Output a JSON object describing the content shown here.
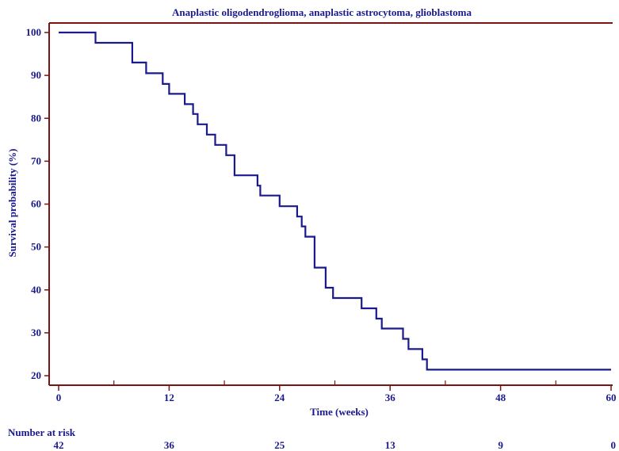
{
  "chart_data": {
    "type": "line",
    "title": "Anaplastic oligodendroglioma, anaplastic astrocytoma, glioblastoma",
    "xlabel": "Time (weeks)",
    "ylabel": "Survival probability (%)",
    "xlim": [
      0,
      60
    ],
    "ylim": [
      18,
      102
    ],
    "x_ticks": [
      0,
      12,
      24,
      36,
      48,
      60
    ],
    "x_tick_labels": [
      "0",
      "12",
      "24",
      "36",
      "48",
      "60"
    ],
    "x_minor_ticks": [
      6,
      18,
      30,
      42,
      54
    ],
    "y_ticks": [
      20,
      30,
      40,
      50,
      60,
      70,
      80,
      90,
      100
    ],
    "y_tick_labels": [
      "20",
      "30",
      "40",
      "50",
      "60",
      "70",
      "80",
      "90",
      "100"
    ],
    "grid": false,
    "colors": {
      "line": "#1a1a8c",
      "axes": "#7a1414",
      "text": "#1a1a8c"
    },
    "series": [
      {
        "x": [
          0,
          4,
          8,
          9.5,
          11.3,
          12,
          13.7,
          14.6,
          15.1,
          16.1,
          17,
          18.2,
          19.1,
          21.6,
          21.9,
          24,
          25.9,
          26.4,
          26.8,
          27.8,
          29,
          29.8,
          32.9,
          34.5,
          35.1,
          37.4,
          38,
          39.5,
          40,
          60
        ],
        "y": [
          100,
          97.6,
          93,
          90.5,
          88,
          85.7,
          83.3,
          81,
          78.6,
          76.2,
          73.8,
          71.4,
          66.7,
          64.3,
          62,
          59.5,
          57.1,
          54.8,
          52.4,
          45.2,
          40.5,
          38.1,
          35.7,
          33.3,
          31,
          28.6,
          26.2,
          23.8,
          21.4,
          21.4
        ]
      }
    ],
    "risk_table": {
      "label": "Number at risk",
      "times": [
        0,
        12,
        24,
        36,
        48,
        60
      ],
      "values": [
        "42",
        "36",
        "25",
        "13",
        "9",
        "0"
      ]
    }
  }
}
